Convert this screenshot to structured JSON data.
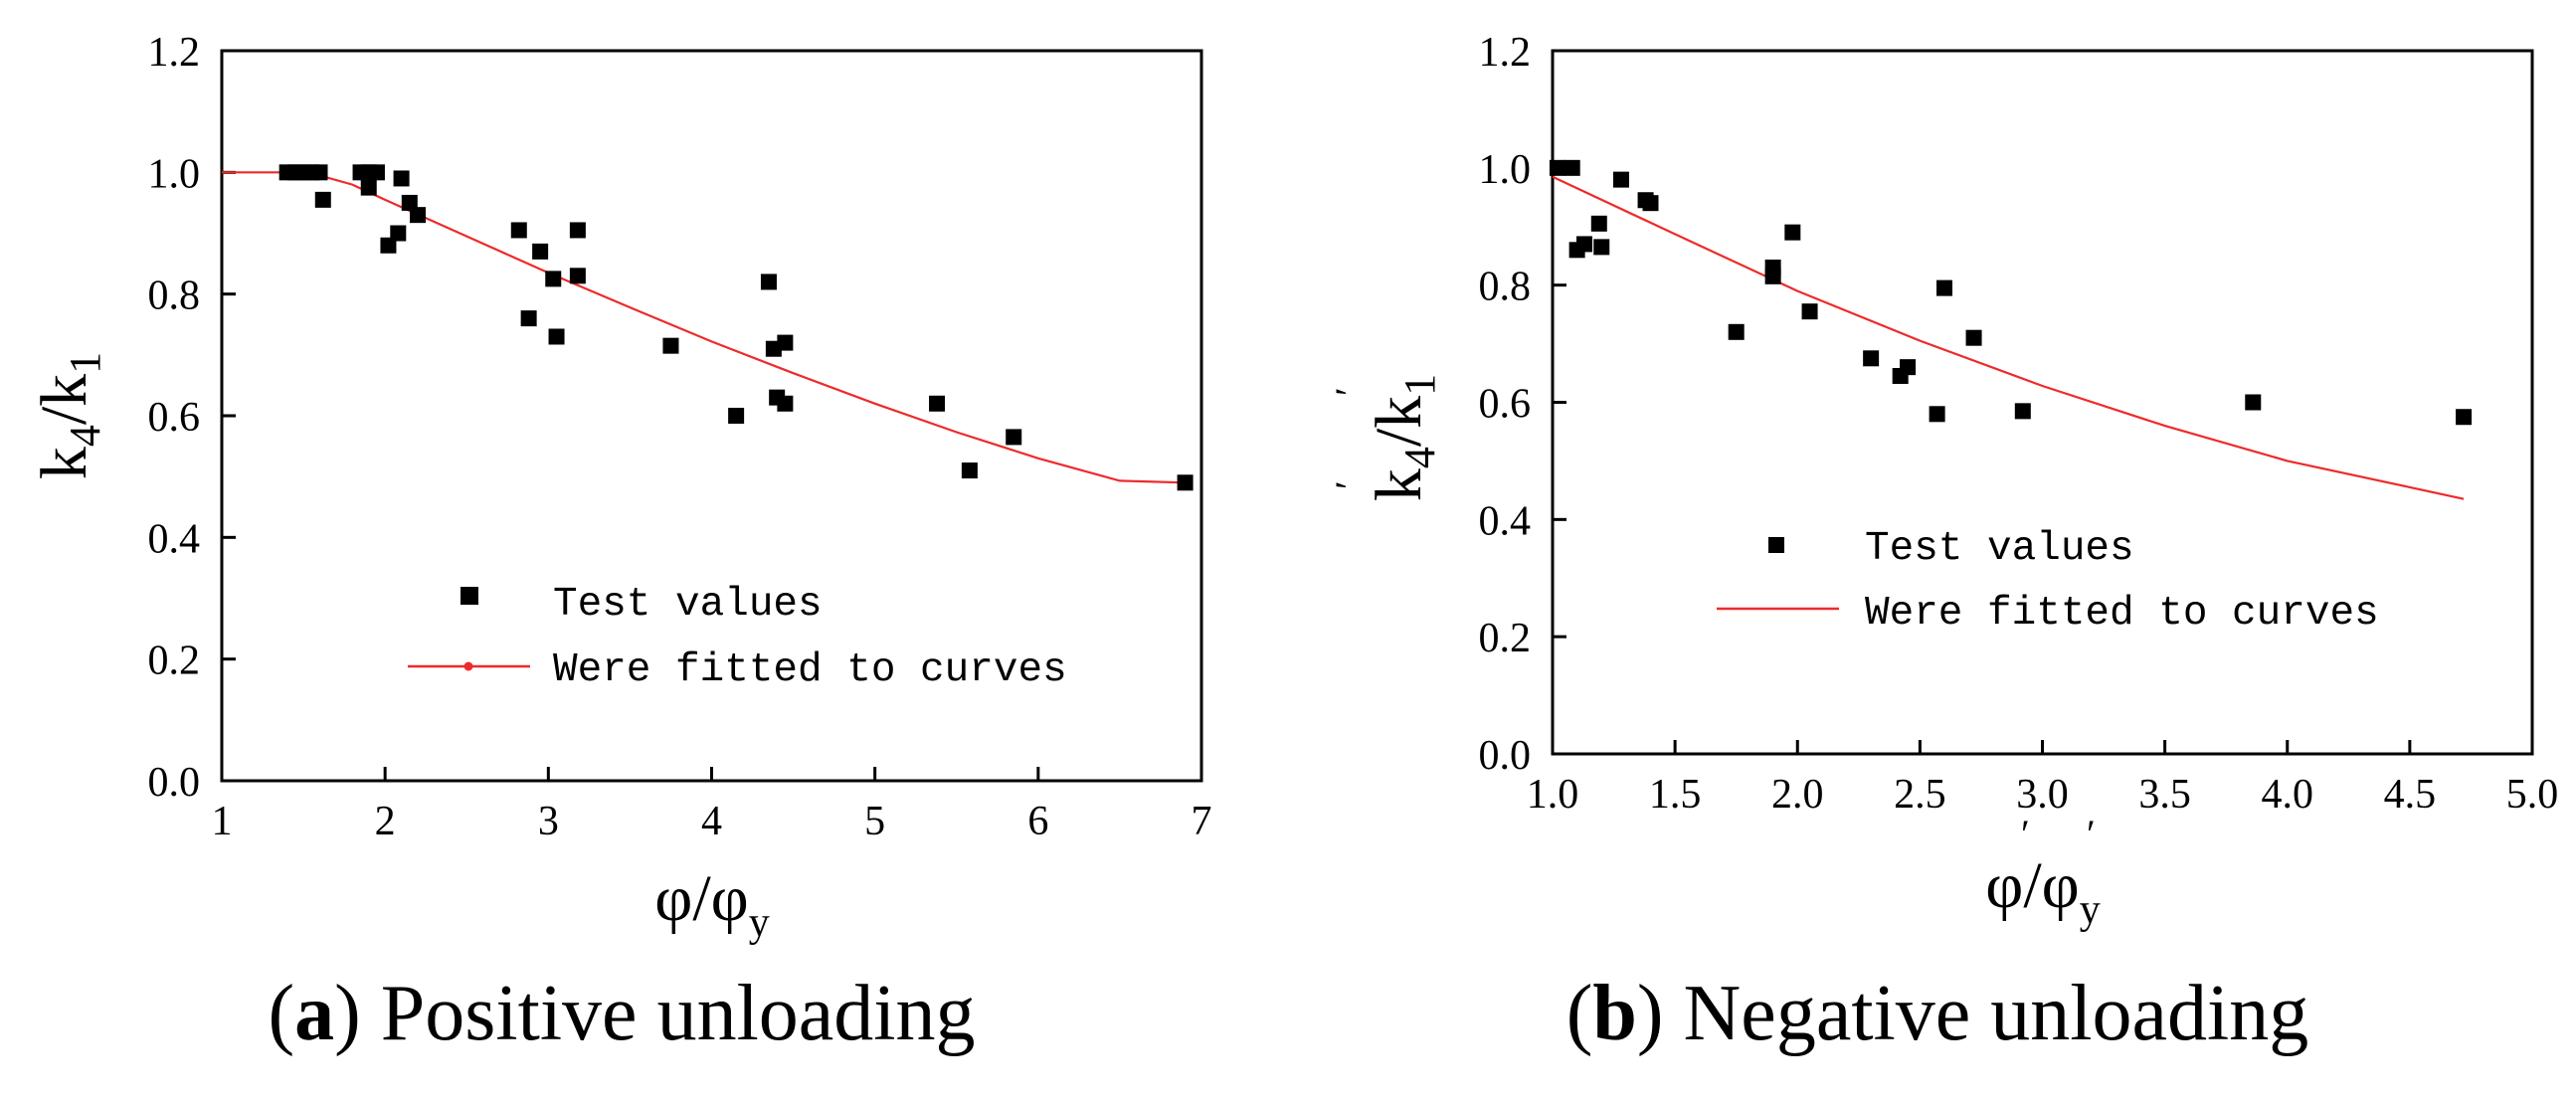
{
  "chart_data": [
    {
      "type": "scatter",
      "panel_letter": "a",
      "caption": "Positive unloading",
      "ylabel_main": "k",
      "ylabel_sub1": "4",
      "ylabel_slash": "/k",
      "ylabel_sub2": "1",
      "ylabel_primes": false,
      "xlabel_main": "φ/φ",
      "xlabel_sub": "y",
      "xlabel_primes": false,
      "xlim": [
        1,
        7
      ],
      "ylim": [
        0.0,
        1.2
      ],
      "x_ticks": [
        1,
        2,
        3,
        4,
        5,
        6,
        7
      ],
      "x_tick_labels": [
        "1",
        "2",
        "3",
        "4",
        "5",
        "6",
        "7"
      ],
      "y_ticks": [
        0.0,
        0.2,
        0.4,
        0.6,
        0.8,
        1.0,
        1.2
      ],
      "y_tick_labels": [
        "0.0",
        "0.2",
        "0.4",
        "0.6",
        "0.8",
        "1.0",
        "1.2"
      ],
      "legend": {
        "position": "lower-left",
        "entries": [
          "Test values",
          "Were fitted to curves"
        ],
        "fit_marker": true
      },
      "series": [
        {
          "name": "Test values",
          "kind": "points",
          "color": "#000000",
          "points": [
            [
              1.4,
              1.0
            ],
            [
              1.45,
              1.0
            ],
            [
              1.5,
              1.0
            ],
            [
              1.55,
              1.0
            ],
            [
              1.6,
              1.0
            ],
            [
              1.62,
              0.955
            ],
            [
              1.85,
              1.0
            ],
            [
              1.9,
              1.0
            ],
            [
              1.9,
              0.975
            ],
            [
              1.95,
              1.0
            ],
            [
              2.02,
              0.88
            ],
            [
              2.08,
              0.9
            ],
            [
              2.1,
              0.99
            ],
            [
              2.15,
              0.95
            ],
            [
              2.2,
              0.93
            ],
            [
              2.82,
              0.905
            ],
            [
              2.88,
              0.76
            ],
            [
              2.95,
              0.87
            ],
            [
              3.03,
              0.825
            ],
            [
              3.05,
              0.73
            ],
            [
              3.18,
              0.905
            ],
            [
              3.18,
              0.83
            ],
            [
              3.75,
              0.715
            ],
            [
              4.15,
              0.6
            ],
            [
              4.35,
              0.82
            ],
            [
              4.38,
              0.71
            ],
            [
              4.4,
              0.63
            ],
            [
              4.45,
              0.72
            ],
            [
              4.45,
              0.62
            ],
            [
              5.38,
              0.62
            ],
            [
              5.58,
              0.51
            ],
            [
              5.85,
              0.565
            ],
            [
              6.9,
              0.49
            ]
          ]
        },
        {
          "name": "Were fitted to curves",
          "kind": "line",
          "color": "#ee2a2a",
          "x": [
            1.0,
            1.2,
            1.4,
            1.6,
            1.8,
            2.0,
            2.5,
            3.0,
            3.5,
            4.0,
            4.5,
            5.0,
            5.5,
            6.0,
            6.5,
            6.9
          ],
          "y": [
            1.0,
            1.0,
            1.0,
            0.995,
            0.98,
            0.955,
            0.895,
            0.835,
            0.778,
            0.722,
            0.67,
            0.62,
            0.573,
            0.53,
            0.493,
            0.49
          ]
        }
      ]
    },
    {
      "type": "scatter",
      "panel_letter": "b",
      "caption": "Negative unloading",
      "ylabel_main": "k",
      "ylabel_sub1": "4",
      "ylabel_slash": "/k",
      "ylabel_sub2": "1",
      "ylabel_primes": true,
      "xlabel_main": "φ/φ",
      "xlabel_sub": "y",
      "xlabel_primes": true,
      "xlim": [
        1.0,
        5.0
      ],
      "ylim": [
        0.0,
        1.2
      ],
      "x_ticks": [
        1.0,
        1.5,
        2.0,
        2.5,
        3.0,
        3.5,
        4.0,
        4.5,
        5.0
      ],
      "x_tick_labels": [
        "1.0",
        "1.5",
        "2.0",
        "2.5",
        "3.0",
        "3.5",
        "4.0",
        "4.5",
        "5.0"
      ],
      "y_ticks": [
        0.0,
        0.2,
        0.4,
        0.6,
        0.8,
        1.0,
        1.2
      ],
      "y_tick_labels": [
        "0.0",
        "0.2",
        "0.4",
        "0.6",
        "0.8",
        "1.0",
        "1.2"
      ],
      "legend": {
        "position": "lower-left",
        "entries": [
          "Test values",
          "Were fitted to curves"
        ],
        "fit_marker": false
      },
      "series": [
        {
          "name": "Test values",
          "kind": "points",
          "color": "#000000",
          "points": [
            [
              1.02,
              1.0
            ],
            [
              1.08,
              1.0
            ],
            [
              1.1,
              0.86
            ],
            [
              1.13,
              0.87
            ],
            [
              1.19,
              0.905
            ],
            [
              1.2,
              0.865
            ],
            [
              1.28,
              0.98
            ],
            [
              1.38,
              0.945
            ],
            [
              1.4,
              0.94
            ],
            [
              1.75,
              0.72
            ],
            [
              1.9,
              0.83
            ],
            [
              1.9,
              0.815
            ],
            [
              1.98,
              0.89
            ],
            [
              2.05,
              0.755
            ],
            [
              2.3,
              0.675
            ],
            [
              2.42,
              0.645
            ],
            [
              2.45,
              0.66
            ],
            [
              2.57,
              0.58
            ],
            [
              2.6,
              0.795
            ],
            [
              2.72,
              0.71
            ],
            [
              2.92,
              0.585
            ],
            [
              3.86,
              0.6
            ],
            [
              4.72,
              0.575
            ]
          ]
        },
        {
          "name": "Were fitted to curves",
          "kind": "line",
          "color": "#ee2a2a",
          "x": [
            1.0,
            1.5,
            2.0,
            2.5,
            3.0,
            3.5,
            4.0,
            4.5,
            4.72
          ],
          "y": [
            0.985,
            0.887,
            0.79,
            0.705,
            0.628,
            0.56,
            0.5,
            0.455,
            0.435
          ]
        }
      ]
    }
  ]
}
